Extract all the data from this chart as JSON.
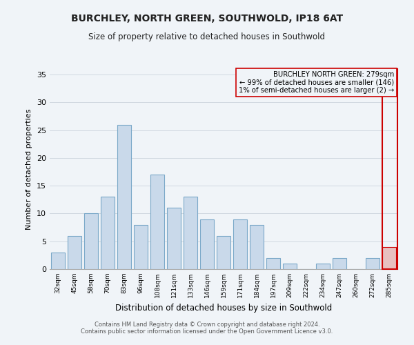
{
  "title": "BURCHLEY, NORTH GREEN, SOUTHWOLD, IP18 6AT",
  "subtitle": "Size of property relative to detached houses in Southwold",
  "xlabel": "Distribution of detached houses by size in Southwold",
  "ylabel": "Number of detached properties",
  "categories": [
    "32sqm",
    "45sqm",
    "58sqm",
    "70sqm",
    "83sqm",
    "96sqm",
    "108sqm",
    "121sqm",
    "133sqm",
    "146sqm",
    "159sqm",
    "171sqm",
    "184sqm",
    "197sqm",
    "209sqm",
    "222sqm",
    "234sqm",
    "247sqm",
    "260sqm",
    "272sqm",
    "285sqm"
  ],
  "values": [
    3,
    6,
    10,
    13,
    26,
    8,
    17,
    11,
    13,
    9,
    6,
    9,
    8,
    2,
    1,
    0,
    1,
    2,
    0,
    2,
    4
  ],
  "bar_color": "#c9d9ea",
  "bar_edge_color": "#7aa8c8",
  "highlight_bar_index": 20,
  "highlight_bar_color": "#e8c0c0",
  "highlight_bar_edge_color": "#cc0000",
  "annotation_box_edge_color": "#cc0000",
  "annotation_lines": [
    "BURCHLEY NORTH GREEN: 279sqm",
    "← 99% of detached houses are smaller (146)",
    "1% of semi-detached houses are larger (2) →"
  ],
  "ylim": [
    0,
    36
  ],
  "yticks": [
    0,
    5,
    10,
    15,
    20,
    25,
    30,
    35
  ],
  "footer_line1": "Contains HM Land Registry data © Crown copyright and database right 2024.",
  "footer_line2": "Contains public sector information licensed under the Open Government Licence v3.0.",
  "bg_color": "#f0f4f8",
  "grid_color": "#d0d8e0"
}
